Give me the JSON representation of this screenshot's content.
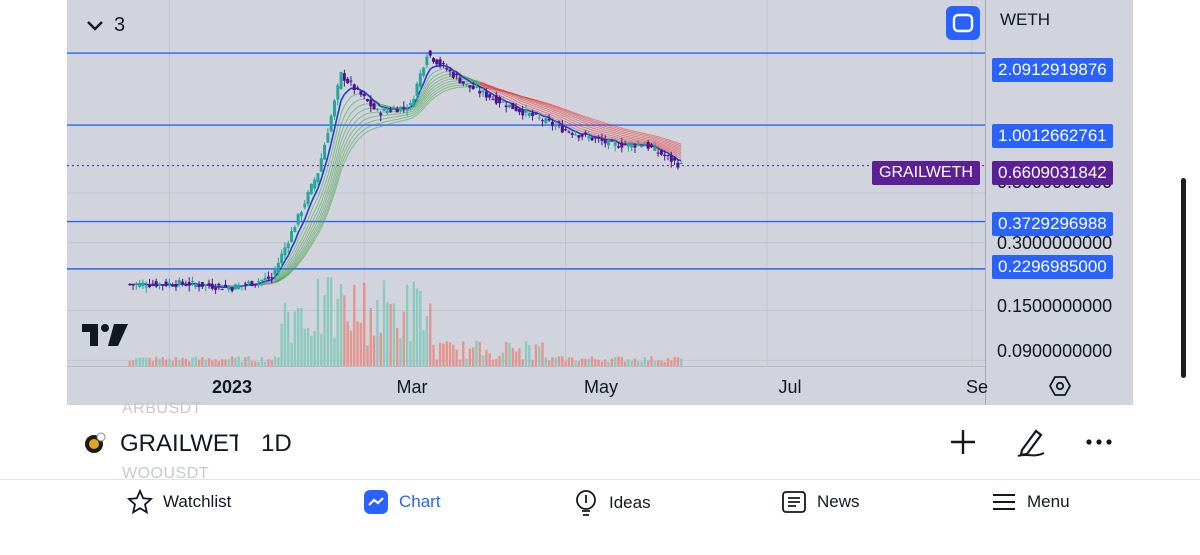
{
  "header": {
    "collapse_label": "3",
    "pair": "WETH"
  },
  "price_scale": {
    "ticks": [
      "0.3000000000",
      "0.1500000000",
      "0.0900000000"
    ],
    "hidden_tick": "0.5000000000",
    "levels": [
      {
        "value": "2.0912919876"
      },
      {
        "value": "1.0012662761"
      },
      {
        "value": "0.3729296988"
      },
      {
        "value": "0.2296985000"
      }
    ],
    "current": {
      "symbol": "GRAILWETH",
      "value": "0.6609031842"
    }
  },
  "time_scale": {
    "labels": [
      "2023",
      "Mar",
      "May",
      "Jul",
      "Se"
    ]
  },
  "colors": {
    "accent": "#2962ff",
    "symbol_tag": "#5b1f96",
    "candle_up": "#26a69a",
    "candle_down": "#4a148c",
    "ribbon_up": "#43a047",
    "ribbon_down": "#e53935"
  },
  "chart_data": {
    "type": "candlestick",
    "symbol": "GRAILWETH",
    "interval": "1D",
    "scale": "log",
    "x": [
      "2022-12-20",
      "2023-01-05",
      "2023-01-20",
      "2023-02-01",
      "2023-02-15",
      "2023-02-22",
      "2023-03-05",
      "2023-03-15",
      "2023-03-20",
      "2023-04-01",
      "2023-04-15",
      "2023-05-01",
      "2023-05-15",
      "2023-05-25",
      "2023-06-05"
    ],
    "close": [
      0.196,
      0.198,
      0.19,
      0.21,
      0.62,
      1.68,
      1.14,
      1.22,
      2.09,
      1.5,
      1.2,
      0.95,
      0.82,
      0.82,
      0.66
    ],
    "horizontal_levels": [
      2.0912919876,
      1.0012662761,
      0.3729296988,
      0.2296985
    ],
    "last_price": 0.6609031842,
    "ylim": [
      0.085,
      3.6
    ],
    "xlim": [
      "2022-12-01",
      "2023-09-05"
    ]
  },
  "symbol_bar": {
    "ghost_above": "ARBUSDT",
    "name": "GRAILWETH",
    "interval": "1D",
    "ghost_below": "WOOUSDT"
  },
  "nav": {
    "items": [
      {
        "label": "Watchlist",
        "icon": "star-icon"
      },
      {
        "label": "Chart",
        "icon": "chart-icon"
      },
      {
        "label": "Ideas",
        "icon": "lightbulb-icon"
      },
      {
        "label": "News",
        "icon": "newspaper-icon"
      },
      {
        "label": "Menu",
        "icon": "hamburger-icon"
      }
    ]
  }
}
